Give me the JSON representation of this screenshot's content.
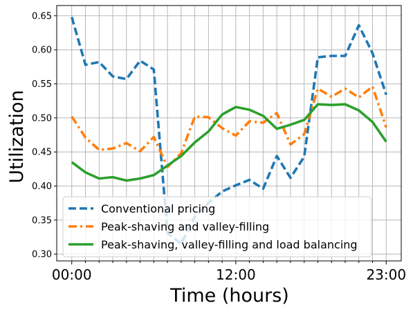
{
  "chart_data": {
    "type": "line",
    "xlabel": "Time (hours)",
    "ylabel": "Utilization",
    "x": [
      0,
      1,
      2,
      3,
      4,
      5,
      6,
      7,
      8,
      9,
      10,
      11,
      12,
      13,
      14,
      15,
      16,
      17,
      18,
      19,
      20,
      21,
      22,
      23
    ],
    "xlim": [
      -1.1,
      24.1
    ],
    "ylim": [
      0.29,
      0.665
    ],
    "xticks_major": [
      {
        "value": 0,
        "label": "00:00"
      },
      {
        "value": 12,
        "label": "12:00"
      },
      {
        "value": 23,
        "label": "23:00"
      }
    ],
    "yticks": [
      {
        "value": 0.3,
        "label": "0.30"
      },
      {
        "value": 0.35,
        "label": "0.35"
      },
      {
        "value": 0.4,
        "label": "0.40"
      },
      {
        "value": 0.45,
        "label": "0.45"
      },
      {
        "value": 0.5,
        "label": "0.50"
      },
      {
        "value": 0.55,
        "label": "0.55"
      },
      {
        "value": 0.6,
        "label": "0.60"
      },
      {
        "value": 0.65,
        "label": "0.65"
      }
    ],
    "grid": true,
    "legend_position": "lower-left",
    "series": [
      {
        "name": "Conventional pricing",
        "style": "dashed",
        "color": "#1f77b4",
        "values": [
          0.648,
          0.578,
          0.582,
          0.561,
          0.557,
          0.584,
          0.571,
          0.331,
          0.315,
          0.355,
          0.375,
          0.392,
          0.401,
          0.409,
          0.396,
          0.444,
          0.412,
          0.443,
          0.589,
          0.591,
          0.591,
          0.636,
          0.595,
          0.534
        ]
      },
      {
        "name": "Peak-shaving and valley-filling",
        "style": "dashdot",
        "color": "#ff7f0e",
        "values": [
          0.502,
          0.471,
          0.453,
          0.455,
          0.463,
          0.451,
          0.472,
          0.428,
          0.448,
          0.502,
          0.501,
          0.485,
          0.474,
          0.495,
          0.493,
          0.507,
          0.461,
          0.476,
          0.543,
          0.531,
          0.543,
          0.53,
          0.546,
          0.486
        ]
      },
      {
        "name": "Peak-shaving, valley-filling and load balancing",
        "style": "solid",
        "color": "#2ca02c",
        "values": [
          0.435,
          0.42,
          0.411,
          0.413,
          0.408,
          0.411,
          0.416,
          0.43,
          0.444,
          0.464,
          0.48,
          0.505,
          0.516,
          0.512,
          0.503,
          0.484,
          0.49,
          0.497,
          0.52,
          0.519,
          0.52,
          0.511,
          0.494,
          0.465
        ]
      }
    ]
  }
}
